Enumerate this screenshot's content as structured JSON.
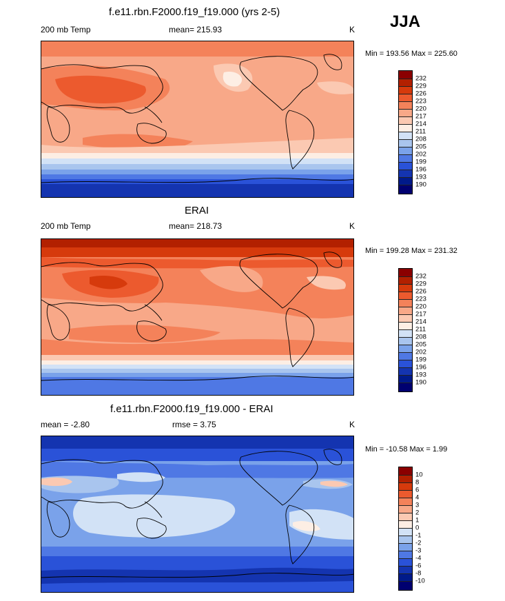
{
  "season": "JJA",
  "panels": [
    {
      "title": "f.e11.rbn.F2000.f19_f19.000 (yrs 2-5)",
      "left_label": "200 mb Temp",
      "center_label": "mean= 215.93",
      "units": "K",
      "range_text": "Min = 193.56 Max = 225.60",
      "colorbar_labels": [
        "232",
        "229",
        "226",
        "223",
        "220",
        "217",
        "214",
        "211",
        "208",
        "205",
        "202",
        "199",
        "196",
        "193",
        "190"
      ]
    },
    {
      "title": "ERAI",
      "left_label": "200 mb Temp",
      "center_label": "mean= 218.73",
      "units": "K",
      "range_text": "Min = 199.28 Max = 231.32",
      "colorbar_labels": [
        "232",
        "229",
        "226",
        "223",
        "220",
        "217",
        "214",
        "211",
        "208",
        "205",
        "202",
        "199",
        "196",
        "193",
        "190"
      ]
    },
    {
      "title": "f.e11.rbn.F2000.f19_f19.000 - ERAI",
      "left_label": "mean =  -2.80",
      "center_label": "rmse =   3.75",
      "units": "K",
      "range_text": "Min = -10.58 Max =   1.99",
      "colorbar_labels": [
        "10",
        "8",
        "6",
        "4",
        "3",
        "2",
        "1",
        "0",
        "-1",
        "-2",
        "-3",
        "-4",
        "-6",
        "-8",
        "-10"
      ]
    }
  ],
  "colors": {
    "scale": [
      "#8b0000",
      "#b22000",
      "#d63a0c",
      "#ec5a2e",
      "#f4825a",
      "#f8a888",
      "#fbc9b2",
      "#fdeee4",
      "#d2e2f6",
      "#a9c5ee",
      "#7aa2ea",
      "#4f78e4",
      "#2a52d8",
      "#1434b0",
      "#001a8a",
      "#000070"
    ]
  },
  "chart_data": [
    {
      "type": "heatmap",
      "title": "f.e11.rbn.F2000.f19_f19.000 (yrs 2-5)",
      "variable": "200 mb Temp",
      "units": "K",
      "mean": 215.93,
      "min": 193.56,
      "max": 225.6,
      "levels": [
        190,
        193,
        196,
        199,
        202,
        205,
        208,
        211,
        214,
        217,
        220,
        223,
        226,
        229,
        232
      ],
      "zonal_profile": [
        {
          "lat": 90,
          "value": 221
        },
        {
          "lat": 60,
          "value": 222
        },
        {
          "lat": 40,
          "value": 224
        },
        {
          "lat": 20,
          "value": 219
        },
        {
          "lat": 0,
          "value": 218
        },
        {
          "lat": -20,
          "value": 220
        },
        {
          "lat": -40,
          "value": 216
        },
        {
          "lat": -55,
          "value": 209
        },
        {
          "lat": -65,
          "value": 202
        },
        {
          "lat": -75,
          "value": 196
        },
        {
          "lat": -90,
          "value": 194
        }
      ]
    },
    {
      "type": "heatmap",
      "title": "ERAI",
      "variable": "200 mb Temp",
      "units": "K",
      "mean": 218.73,
      "min": 199.28,
      "max": 231.32,
      "levels": [
        190,
        193,
        196,
        199,
        202,
        205,
        208,
        211,
        214,
        217,
        220,
        223,
        226,
        229,
        232
      ],
      "zonal_profile": [
        {
          "lat": 90,
          "value": 230
        },
        {
          "lat": 70,
          "value": 227
        },
        {
          "lat": 40,
          "value": 225
        },
        {
          "lat": 20,
          "value": 221
        },
        {
          "lat": 0,
          "value": 219
        },
        {
          "lat": -20,
          "value": 222
        },
        {
          "lat": -40,
          "value": 219
        },
        {
          "lat": -55,
          "value": 212
        },
        {
          "lat": -65,
          "value": 206
        },
        {
          "lat": -75,
          "value": 201
        },
        {
          "lat": -90,
          "value": 200
        }
      ]
    },
    {
      "type": "heatmap",
      "title": "f.e11.rbn.F2000.f19_f19.000 - ERAI",
      "units": "K",
      "mean": -2.8,
      "rmse": 3.75,
      "min": -10.58,
      "max": 1.99,
      "levels": [
        -10,
        -8,
        -6,
        -4,
        -3,
        -2,
        -1,
        0,
        1,
        2,
        3,
        4,
        6,
        8,
        10
      ],
      "zonal_profile": [
        {
          "lat": 90,
          "value": -8
        },
        {
          "lat": 70,
          "value": -5
        },
        {
          "lat": 50,
          "value": -3
        },
        {
          "lat": 30,
          "value": -2
        },
        {
          "lat": 0,
          "value": -1
        },
        {
          "lat": -20,
          "value": -2
        },
        {
          "lat": -40,
          "value": -3
        },
        {
          "lat": -55,
          "value": -4
        },
        {
          "lat": -70,
          "value": -5
        },
        {
          "lat": -90,
          "value": -5
        }
      ]
    }
  ]
}
